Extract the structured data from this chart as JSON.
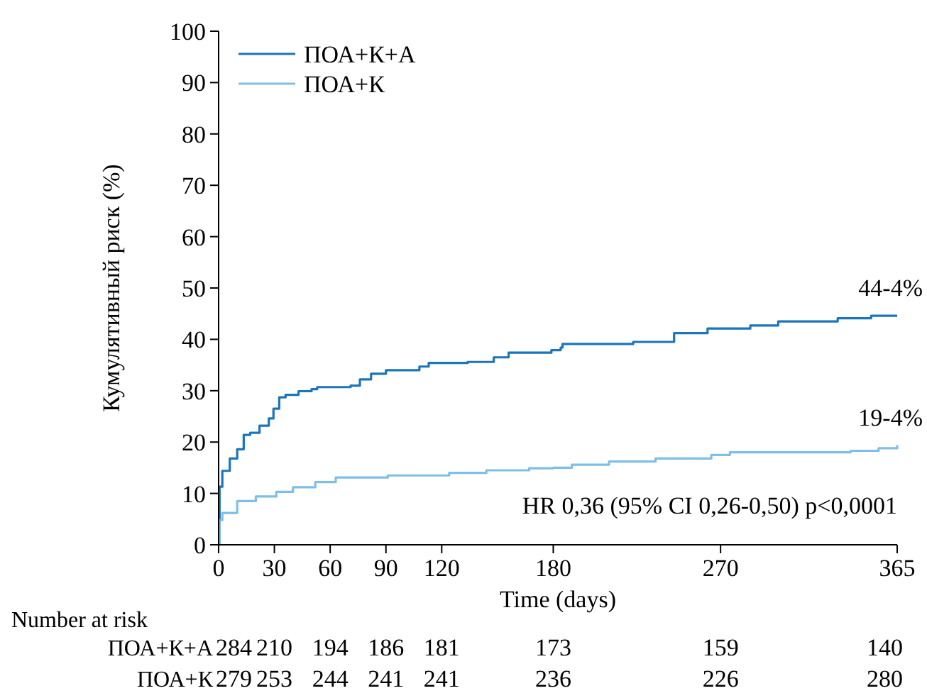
{
  "chart_data": {
    "type": "step",
    "xlabel": "Time (days)",
    "ylabel": "Кумулятивный риск (%)",
    "xlim": [
      0,
      365
    ],
    "ylim": [
      0,
      100
    ],
    "xticks": [
      0,
      30,
      60,
      90,
      120,
      180,
      270,
      365
    ],
    "yticks": [
      0,
      10,
      20,
      30,
      40,
      50,
      60,
      70,
      80,
      90,
      100
    ],
    "legend": "top left",
    "line_style": "solid",
    "marker": "none",
    "series": [
      {
        "name": "ПОА+К+А",
        "color": "#1a75bb",
        "x": [
          0,
          0.5,
          2,
          6,
          10,
          13.5,
          17,
          22,
          27,
          29.5,
          32.6,
          36,
          43,
          50,
          53,
          71,
          76,
          82,
          90,
          108,
          113,
          134,
          148,
          156,
          179,
          184,
          185,
          223,
          245,
          263,
          286,
          301,
          333,
          351,
          365
        ],
        "values": [
          0,
          11.3,
          14.4,
          16.8,
          18.6,
          21.4,
          21.8,
          23.2,
          24.6,
          26.5,
          28.7,
          29.2,
          29.9,
          30.3,
          30.7,
          31.0,
          32.2,
          33.3,
          34.0,
          34.7,
          35.4,
          35.6,
          36.5,
          37.4,
          37.9,
          38.4,
          39.1,
          39.5,
          41.2,
          42.1,
          42.7,
          43.5,
          44.1,
          44.6,
          44.6
        ]
      },
      {
        "name": "ПОА+К",
        "color": "#7fbfe6",
        "x": [
          0,
          0.5,
          2,
          10,
          20,
          31,
          40,
          52,
          63,
          91,
          124,
          144,
          167,
          180,
          190,
          210,
          235,
          265,
          275,
          340,
          355,
          365
        ],
        "values": [
          0,
          4.8,
          6.2,
          8.5,
          9.4,
          10.3,
          11.2,
          12.2,
          13.1,
          13.5,
          14.0,
          14.5,
          14.9,
          15.0,
          15.6,
          16.2,
          16.8,
          17.5,
          18.0,
          18.3,
          18.8,
          19.4
        ]
      }
    ],
    "annotations": [
      "HR 0,36 (95% CI 0,26-0,50) p<0,0001",
      "Number at risk",
      {
        "text": "44-4%",
        "x": 365,
        "y": 44.6
      },
      {
        "text": "19-4%",
        "x": 365,
        "y": 19.4
      },
      "284",
      "210",
      "194",
      "186",
      "181",
      "173",
      "159",
      "140",
      "279",
      "253",
      "244",
      "241",
      "241",
      "236",
      "226",
      "280"
    ]
  }
}
